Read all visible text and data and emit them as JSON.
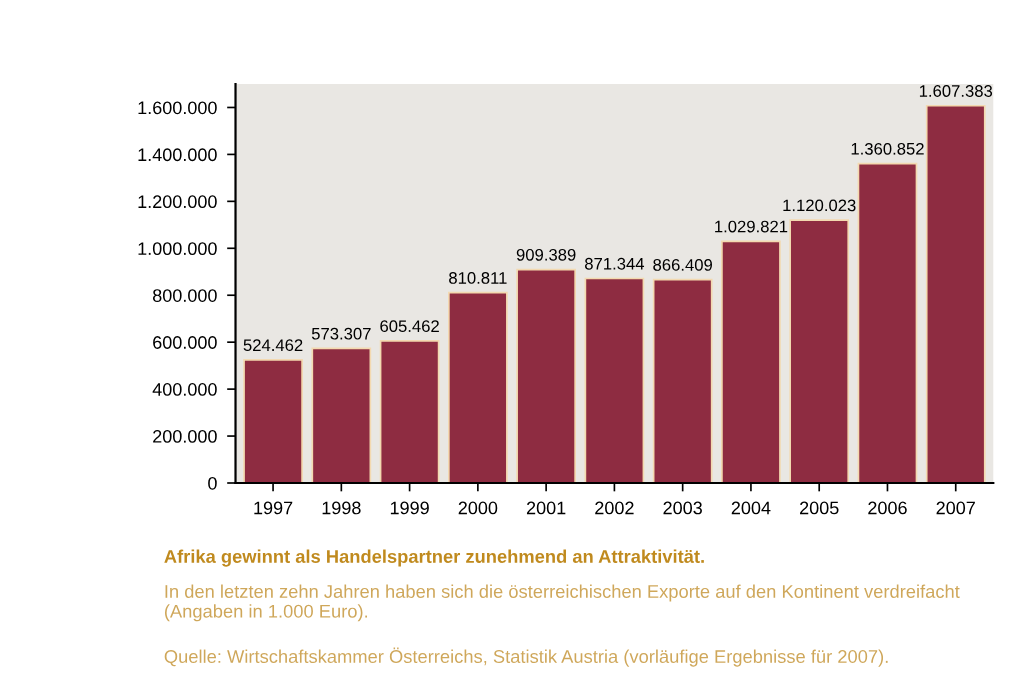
{
  "chart_data": {
    "type": "bar",
    "categories": [
      "1997",
      "1998",
      "1999",
      "2000",
      "2001",
      "2002",
      "2003",
      "2004",
      "2005",
      "2006",
      "2007"
    ],
    "values": [
      524462,
      573307,
      605462,
      810811,
      909389,
      871344,
      866409,
      1029821,
      1120023,
      1360852,
      1607383
    ],
    "value_labels": [
      "524.462",
      "573.307",
      "605.462",
      "810.811",
      "909.389",
      "871.344",
      "866.409",
      "1.029.821",
      "1.120.023",
      "1.360.852",
      "1.607.383"
    ],
    "color": "#8e2c41",
    "ylim": [
      0,
      1700000
    ],
    "yticks": [
      {
        "value": 0,
        "label": "0"
      },
      {
        "value": 200000,
        "label": "200.000"
      },
      {
        "value": 400000,
        "label": "400.000"
      },
      {
        "value": 600000,
        "label": "600.000"
      },
      {
        "value": 800000,
        "label": "800.000"
      },
      {
        "value": 1000000,
        "label": "1.000.000"
      },
      {
        "value": 1200000,
        "label": "1.200.000"
      },
      {
        "value": 1400000,
        "label": "1.400.000"
      },
      {
        "value": 1600000,
        "label": "1.600.000"
      }
    ],
    "grid": false,
    "legend": false,
    "annotations": [
      "Afrika gewinnt als Handelspartner zunehmend an Attraktivität.",
      "In den letzten zehn Jahren haben sich die österreichischen Exporte auf den Kontinent verdreifacht (Angaben in 1.000 Euro).",
      "Quelle: Wirtschaftskammer Österreichs, Statistik Austria (vorläufige Ergebnisse für 2007)."
    ]
  }
}
